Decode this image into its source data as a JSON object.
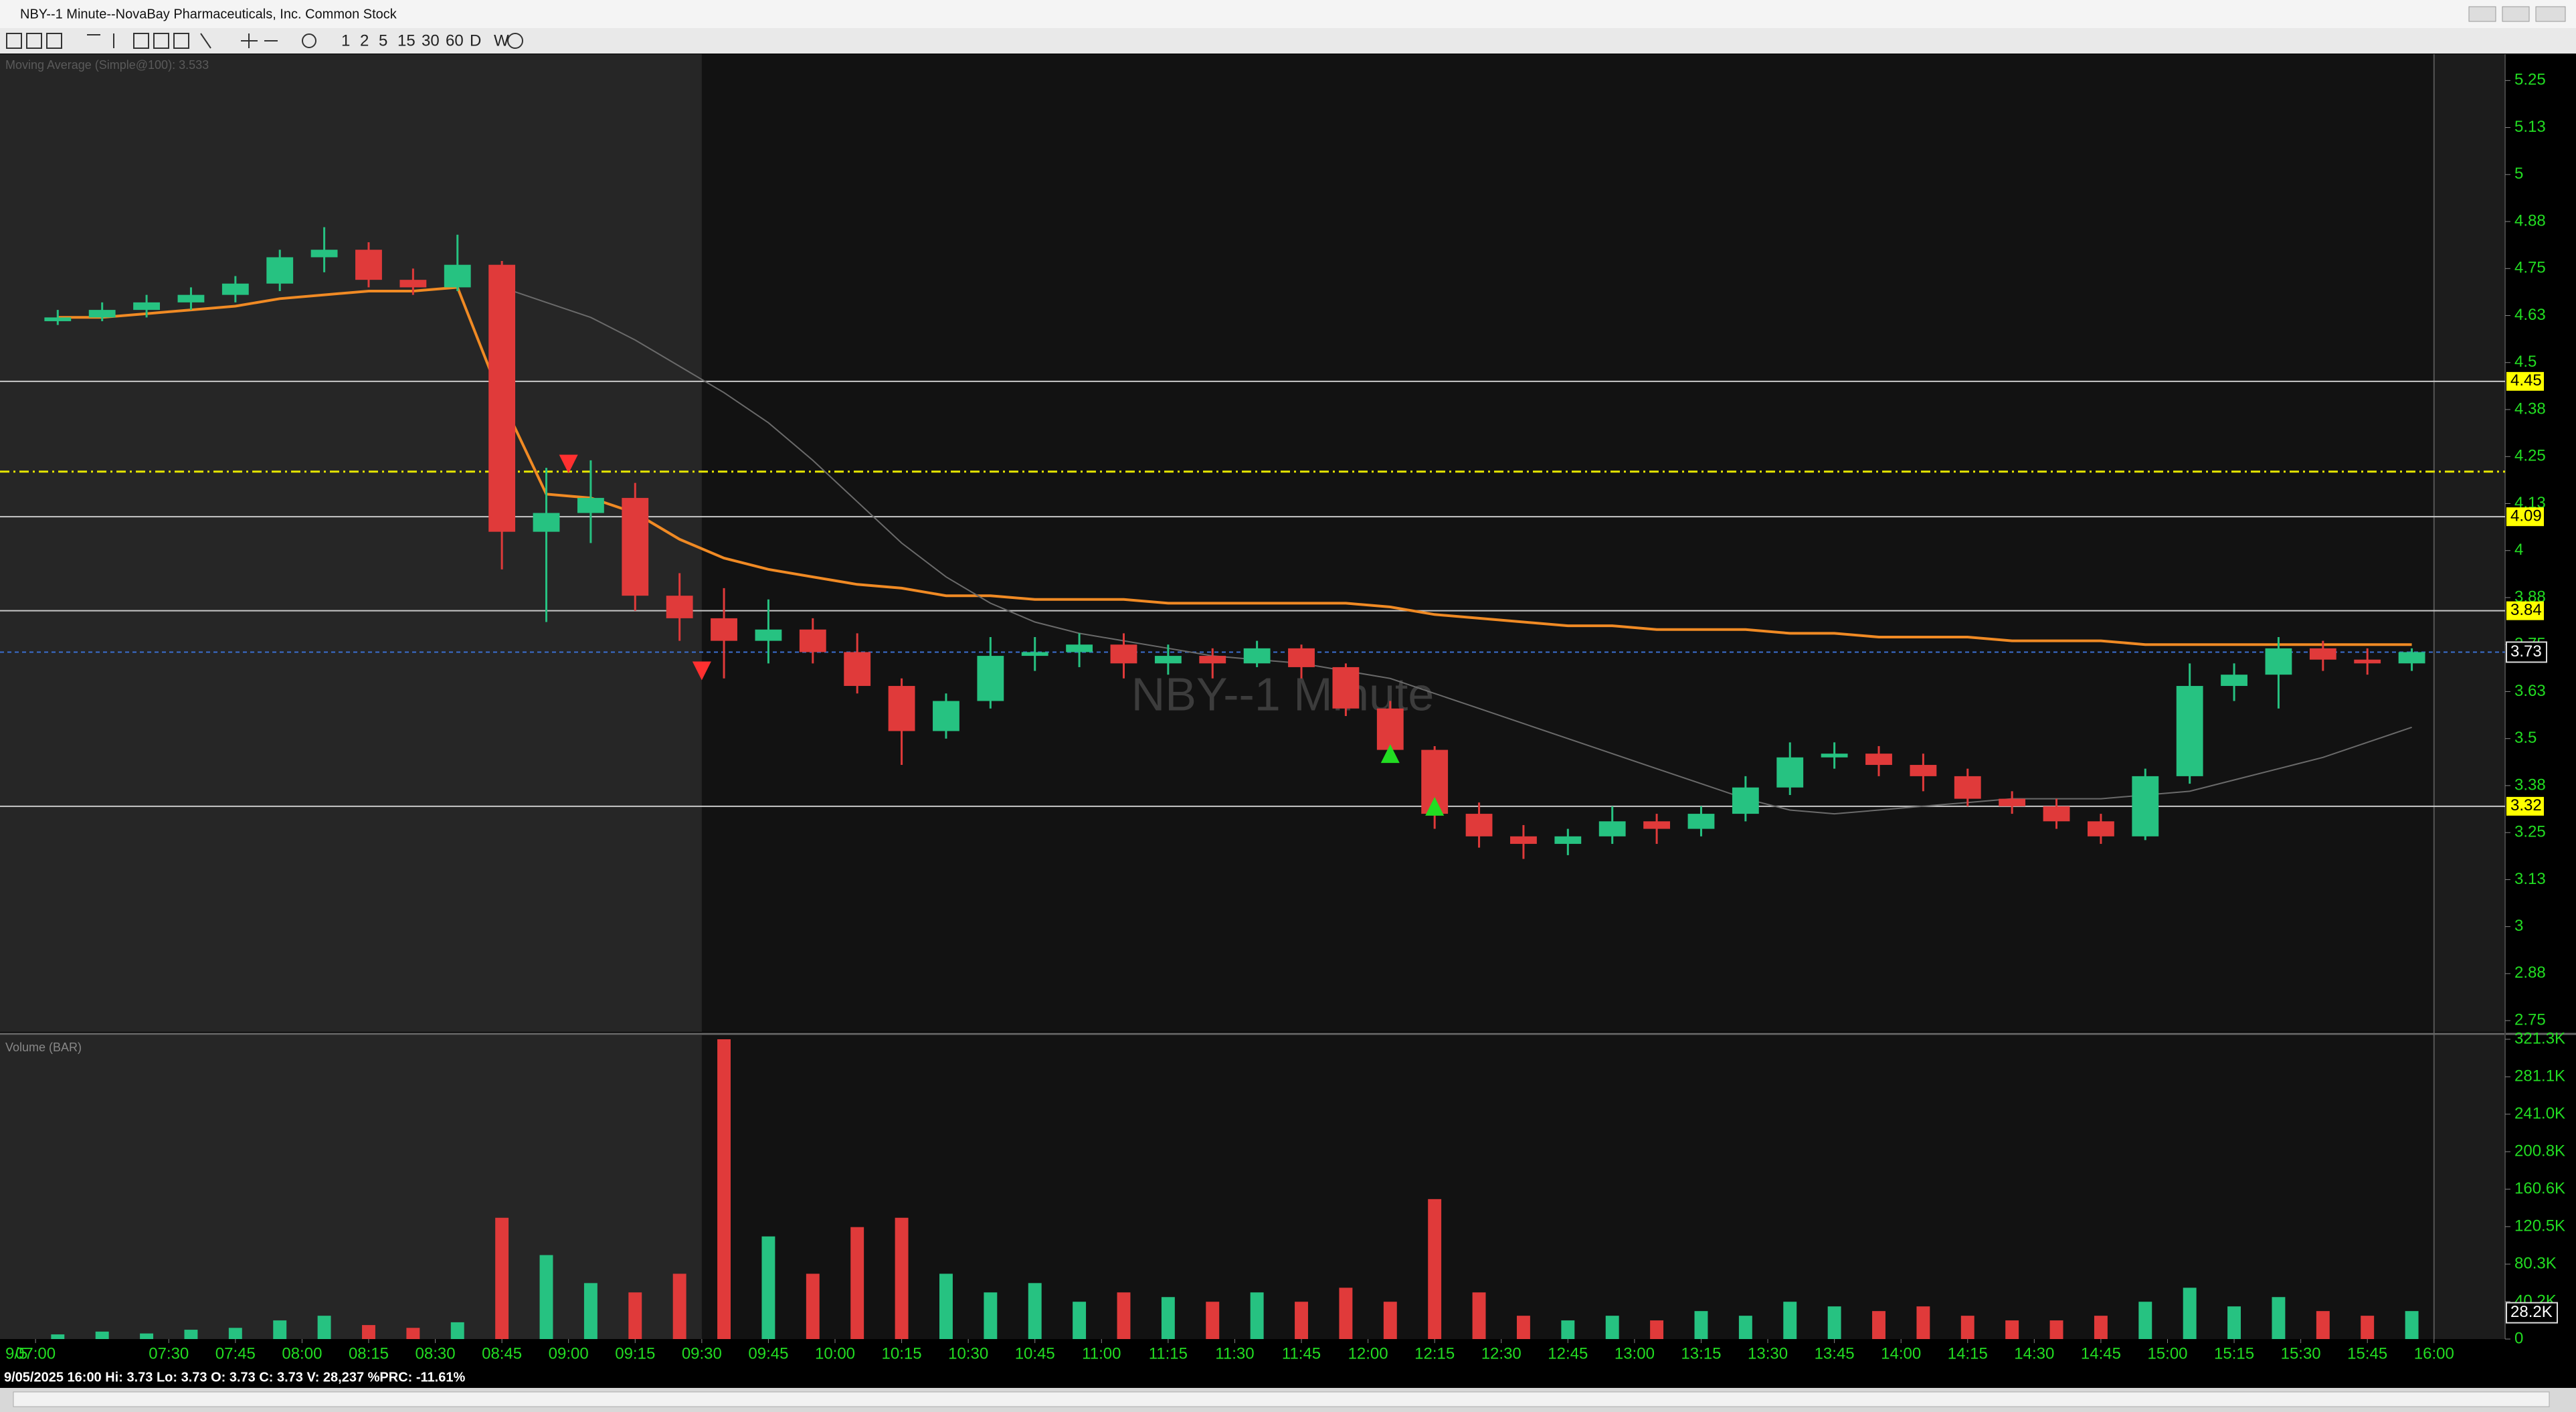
{
  "window": {
    "title": "NBY--1 Minute--NovaBay Pharmaceuticals, Inc. Common Stock"
  },
  "toolbar": {
    "periods": [
      "1",
      "2",
      "5",
      "15",
      "30",
      "60",
      "D",
      "W"
    ]
  },
  "chart_data": {
    "type": "candlestick",
    "watermark": "NBY--1 Minute",
    "x": [
      "07:00",
      "07:10",
      "07:20",
      "07:30",
      "07:40",
      "07:50",
      "08:00",
      "08:10",
      "08:20",
      "08:30",
      "08:40",
      "08:50",
      "09:00",
      "09:10",
      "09:20",
      "09:30",
      "09:40",
      "09:50",
      "10:00",
      "10:10",
      "10:20",
      "10:30",
      "10:40",
      "10:50",
      "11:00",
      "11:10",
      "11:20",
      "11:30",
      "11:40",
      "11:50",
      "12:00",
      "12:10",
      "12:20",
      "12:30",
      "12:40",
      "12:50",
      "13:00",
      "13:10",
      "13:20",
      "13:30",
      "13:40",
      "13:50",
      "14:00",
      "14:10",
      "14:20",
      "14:30",
      "14:40",
      "14:50",
      "15:00",
      "15:10",
      "15:20",
      "15:30",
      "15:40",
      "15:50"
    ],
    "open": [
      4.61,
      4.62,
      4.64,
      4.66,
      4.68,
      4.71,
      4.78,
      4.8,
      4.72,
      4.7,
      4.76,
      4.05,
      4.1,
      4.14,
      3.88,
      3.82,
      3.76,
      3.79,
      3.73,
      3.64,
      3.52,
      3.6,
      3.72,
      3.73,
      3.75,
      3.7,
      3.72,
      3.7,
      3.74,
      3.69,
      3.58,
      3.47,
      3.3,
      3.24,
      3.22,
      3.24,
      3.28,
      3.26,
      3.3,
      3.37,
      3.45,
      3.46,
      3.43,
      3.4,
      3.34,
      3.32,
      3.28,
      3.24,
      3.4,
      3.64,
      3.67,
      3.74,
      3.71,
      3.7
    ],
    "high": [
      4.64,
      4.66,
      4.68,
      4.7,
      4.73,
      4.8,
      4.86,
      4.82,
      4.75,
      4.84,
      4.77,
      4.22,
      4.24,
      4.18,
      3.94,
      3.9,
      3.87,
      3.82,
      3.78,
      3.66,
      3.62,
      3.77,
      3.77,
      3.78,
      3.78,
      3.75,
      3.74,
      3.76,
      3.75,
      3.7,
      3.6,
      3.48,
      3.33,
      3.27,
      3.26,
      3.32,
      3.3,
      3.32,
      3.4,
      3.49,
      3.49,
      3.48,
      3.46,
      3.42,
      3.36,
      3.34,
      3.3,
      3.42,
      3.7,
      3.7,
      3.77,
      3.76,
      3.74,
      3.74
    ],
    "low": [
      4.6,
      4.61,
      4.62,
      4.64,
      4.66,
      4.69,
      4.74,
      4.7,
      4.68,
      4.69,
      3.95,
      3.81,
      4.02,
      3.84,
      3.76,
      3.66,
      3.7,
      3.7,
      3.62,
      3.43,
      3.5,
      3.58,
      3.68,
      3.69,
      3.66,
      3.67,
      3.66,
      3.69,
      3.66,
      3.56,
      3.44,
      3.26,
      3.21,
      3.18,
      3.19,
      3.22,
      3.22,
      3.24,
      3.28,
      3.35,
      3.42,
      3.4,
      3.36,
      3.32,
      3.3,
      3.26,
      3.22,
      3.23,
      3.38,
      3.6,
      3.58,
      3.68,
      3.67,
      3.68
    ],
    "close": [
      4.62,
      4.64,
      4.66,
      4.68,
      4.71,
      4.78,
      4.8,
      4.72,
      4.7,
      4.76,
      4.05,
      4.1,
      4.14,
      3.88,
      3.82,
      3.76,
      3.79,
      3.73,
      3.64,
      3.52,
      3.6,
      3.72,
      3.73,
      3.75,
      3.7,
      3.72,
      3.7,
      3.74,
      3.69,
      3.58,
      3.47,
      3.3,
      3.24,
      3.22,
      3.24,
      3.28,
      3.26,
      3.3,
      3.37,
      3.45,
      3.46,
      3.43,
      3.4,
      3.34,
      3.32,
      3.28,
      3.24,
      3.4,
      3.64,
      3.67,
      3.74,
      3.71,
      3.7,
      3.73
    ],
    "up_color": "#26c281",
    "down_color": "#e03a3a",
    "series": [
      {
        "color": "#f08a24",
        "values": [
          4.62,
          4.62,
          4.63,
          4.64,
          4.65,
          4.67,
          4.68,
          4.69,
          4.69,
          4.7,
          4.4,
          4.15,
          4.14,
          4.1,
          4.03,
          3.98,
          3.95,
          3.93,
          3.91,
          3.9,
          3.88,
          3.88,
          3.87,
          3.87,
          3.87,
          3.86,
          3.86,
          3.86,
          3.86,
          3.86,
          3.85,
          3.83,
          3.82,
          3.81,
          3.8,
          3.8,
          3.79,
          3.79,
          3.79,
          3.78,
          3.78,
          3.77,
          3.77,
          3.77,
          3.76,
          3.76,
          3.76,
          3.75,
          3.75,
          3.75,
          3.75,
          3.75,
          3.75,
          3.75
        ]
      },
      {
        "name": "Moving Average (Simple@100): 3.533",
        "color": "#6a6a6a",
        "values": [
          null,
          null,
          null,
          null,
          null,
          null,
          null,
          null,
          null,
          null,
          4.7,
          4.66,
          4.62,
          4.56,
          4.49,
          4.42,
          4.34,
          4.24,
          4.13,
          4.02,
          3.93,
          3.86,
          3.81,
          3.78,
          3.76,
          3.74,
          3.72,
          3.71,
          3.7,
          3.68,
          3.66,
          3.62,
          3.58,
          3.54,
          3.5,
          3.46,
          3.42,
          3.38,
          3.34,
          3.31,
          3.3,
          3.31,
          3.32,
          3.33,
          3.34,
          3.34,
          3.34,
          3.35,
          3.36,
          3.39,
          3.42,
          3.45,
          3.49,
          3.53
        ]
      }
    ],
    "xlim": [
      "06:52",
      "16:16"
    ],
    "date_label": "9/5",
    "xticks": [
      "07:00",
      "07:30",
      "07:45",
      "08:00",
      "08:15",
      "08:30",
      "08:45",
      "09:00",
      "09:15",
      "09:30",
      "09:45",
      "10:00",
      "10:15",
      "10:30",
      "10:45",
      "11:00",
      "11:15",
      "11:30",
      "11:45",
      "12:00",
      "12:15",
      "12:30",
      "12:45",
      "13:00",
      "13:15",
      "13:30",
      "13:45",
      "14:00",
      "14:15",
      "14:30",
      "14:45",
      "15:00",
      "15:15",
      "15:30",
      "15:45",
      "16:00"
    ],
    "session": [
      "09:30",
      "16:00"
    ],
    "ylim": [
      2.72,
      5.32
    ],
    "yticks": [
      5.25,
      {
        "value": 5.125,
        "label": "5.13"
      },
      5,
      {
        "value": 4.875,
        "label": "4.88"
      },
      4.75,
      {
        "value": 4.625,
        "label": "4.63"
      },
      4.5,
      {
        "value": 4.375,
        "label": "4.38"
      },
      4.25,
      {
        "value": 4.125,
        "label": "4.13"
      },
      4,
      {
        "value": 3.875,
        "label": "3.88"
      },
      3.75,
      {
        "value": 3.625,
        "label": "3.63"
      },
      3.5,
      {
        "value": 3.375,
        "label": "3.38"
      },
      3.25,
      {
        "value": 3.125,
        "label": "3.13"
      },
      3,
      {
        "value": 2.875,
        "label": "2.88"
      },
      2.75
    ],
    "levels": [
      {
        "value": 4.45,
        "color": "#c8c8c8",
        "labeled": true
      },
      {
        "value": 4.21,
        "color": "#e6e600",
        "dashed": true
      },
      {
        "value": 4.09,
        "color": "#c8c8c8",
        "labeled": true
      },
      {
        "value": 3.84,
        "color": "#c8c8c8",
        "labeled": true
      },
      {
        "value": 3.32,
        "color": "#c8c8c8",
        "labeled": true
      }
    ],
    "last_price": 3.73,
    "signals": [
      {
        "x": "09:00",
        "y": 4.23,
        "color": "#ff3030",
        "shape": "down"
      },
      {
        "x": "09:30",
        "y": 3.68,
        "color": "#ff3030",
        "shape": "down"
      },
      {
        "x": "12:05",
        "y": 3.46,
        "color": "#22dd22",
        "shape": "up"
      },
      {
        "x": "12:15",
        "y": 3.32,
        "color": "#22dd22",
        "shape": "up"
      }
    ],
    "volume": {
      "title": "Volume (BAR)",
      "values": [
        5000,
        8000,
        6000,
        10000,
        12000,
        20000,
        25000,
        15000,
        12000,
        18000,
        130000,
        90000,
        60000,
        50000,
        70000,
        321300,
        110000,
        70000,
        120000,
        130000,
        70000,
        50000,
        60000,
        40000,
        50000,
        45000,
        40000,
        50000,
        40000,
        55000,
        40000,
        150000,
        50000,
        25000,
        20000,
        25000,
        20000,
        30000,
        25000,
        40000,
        35000,
        30000,
        35000,
        25000,
        20000,
        20000,
        25000,
        40000,
        55000,
        35000,
        45000,
        30000,
        25000,
        30000
      ],
      "ylim": [
        0,
        321300
      ],
      "yticks": [
        {
          "value": 321300,
          "label": "321.3K"
        },
        {
          "value": 281100,
          "label": "281.1K"
        },
        {
          "value": 241000,
          "label": "241.0K"
        },
        {
          "value": 200800,
          "label": "200.8K"
        },
        {
          "value": 160600,
          "label": "160.6K"
        },
        {
          "value": 120500,
          "label": "120.5K"
        },
        {
          "value": 80300,
          "label": "80.3K"
        },
        {
          "value": 40200,
          "label": "40.2K"
        },
        0
      ],
      "last": {
        "value": 28200,
        "label": "28.2K"
      }
    }
  },
  "status": "9/05/2025 16:00  Hi: 3.73  Lo: 3.73  O: 3.73  C: 3.73  V: 28,237 %PRC: -11.61%"
}
